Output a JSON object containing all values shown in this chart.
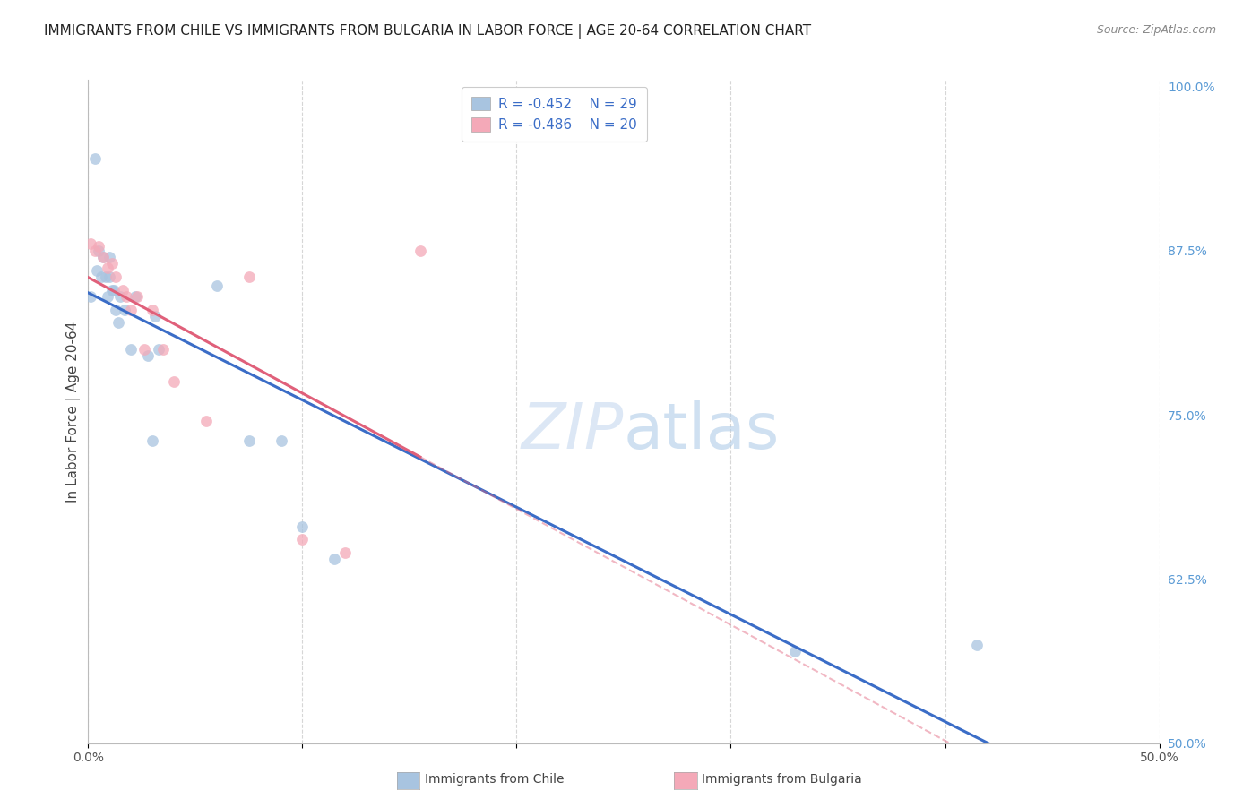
{
  "title": "IMMIGRANTS FROM CHILE VS IMMIGRANTS FROM BULGARIA IN LABOR FORCE | AGE 20-64 CORRELATION CHART",
  "source": "Source: ZipAtlas.com",
  "ylabel": "In Labor Force | Age 20-64",
  "xlim": [
    0.0,
    0.5
  ],
  "ylim": [
    0.5,
    1.005
  ],
  "xticks": [
    0.0,
    0.1,
    0.2,
    0.3,
    0.4,
    0.5
  ],
  "xticklabels": [
    "0.0%",
    "",
    "",
    "",
    "",
    "50.0%"
  ],
  "yticks_right": [
    0.5,
    0.625,
    0.75,
    0.875,
    1.0
  ],
  "yticklabels_right": [
    "50.0%",
    "62.5%",
    "75.0%",
    "87.5%",
    "100.0%"
  ],
  "chile_color": "#a8c4e0",
  "bulgaria_color": "#f4a9b8",
  "chile_line_color": "#3b6dc7",
  "bulgaria_line_color": "#e0607a",
  "legend_text_color": "#3b6dc7",
  "chile_R": "-0.452",
  "chile_N": "29",
  "bulgaria_R": "-0.486",
  "bulgaria_N": "20",
  "watermark_zip": "ZIP",
  "watermark_atlas": "atlas",
  "chile_x": [
    0.001,
    0.003,
    0.004,
    0.005,
    0.006,
    0.007,
    0.008,
    0.009,
    0.01,
    0.01,
    0.011,
    0.012,
    0.013,
    0.014,
    0.015,
    0.017,
    0.02,
    0.022,
    0.028,
    0.03,
    0.031,
    0.033,
    0.06,
    0.075,
    0.09,
    0.1,
    0.115,
    0.33,
    0.415
  ],
  "chile_y": [
    0.84,
    0.945,
    0.86,
    0.875,
    0.855,
    0.87,
    0.855,
    0.84,
    0.87,
    0.855,
    0.845,
    0.845,
    0.83,
    0.82,
    0.84,
    0.83,
    0.8,
    0.84,
    0.795,
    0.73,
    0.825,
    0.8,
    0.848,
    0.73,
    0.73,
    0.665,
    0.64,
    0.57,
    0.575
  ],
  "bulgaria_x": [
    0.001,
    0.003,
    0.005,
    0.007,
    0.009,
    0.011,
    0.013,
    0.016,
    0.018,
    0.02,
    0.023,
    0.026,
    0.03,
    0.035,
    0.04,
    0.055,
    0.075,
    0.1,
    0.12,
    0.155
  ],
  "bulgaria_y": [
    0.88,
    0.875,
    0.878,
    0.87,
    0.862,
    0.865,
    0.855,
    0.845,
    0.84,
    0.83,
    0.84,
    0.8,
    0.83,
    0.8,
    0.775,
    0.745,
    0.855,
    0.655,
    0.645,
    0.875
  ],
  "background_color": "#ffffff",
  "grid_color": "#cccccc",
  "title_fontsize": 11,
  "axis_label_fontsize": 11,
  "tick_fontsize": 10,
  "marker_size": 85
}
